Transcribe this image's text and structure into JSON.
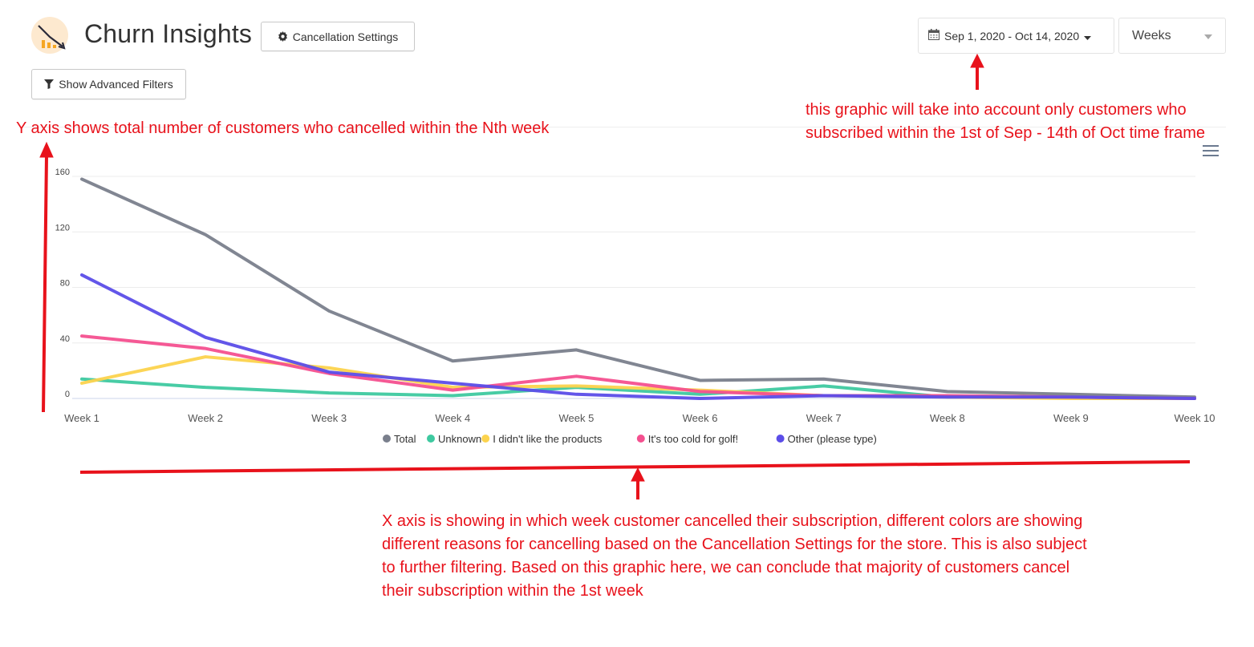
{
  "header": {
    "title": "Churn Insights",
    "settings_button": "Cancellation Settings",
    "filters_button": "Show Advanced Filters",
    "date_range": "Sep 1, 2020 - Oct 14, 2020",
    "period": "Weeks"
  },
  "annotations": {
    "y_axis_note": "Y axis shows total number of customers who cancelled within the Nth week",
    "date_note": "this graphic will take into account only customers who subscribed within the 1st of Sep - 14th of Oct time frame",
    "x_axis_note": "X axis is showing in which week customer cancelled their subscription, different colors are showing different reasons for cancelling based on the Cancellation Settings for the store. This is also subject to further filtering. Based on this graphic here, we can conclude that majority of customers cancel their subscription within the 1st week",
    "color": "#e8121b"
  },
  "icons": {
    "logo": "churn-chart-logo",
    "settings": "gear-icon",
    "filters": "funnel-icon",
    "calendar": "calendar-icon",
    "caret": "caret-down-icon",
    "menu": "hamburger-menu-icon"
  },
  "chart_data": {
    "type": "line",
    "categories": [
      "Week 1",
      "Week 2",
      "Week 3",
      "Week 4",
      "Week 5",
      "Week 6",
      "Week 7",
      "Week 8",
      "Week 9",
      "Week 10"
    ],
    "y_ticks": [
      "0",
      "40",
      "80",
      "120",
      "160"
    ],
    "ylim": [
      0,
      160
    ],
    "grid": true,
    "legend_position": "bottom-center",
    "series": [
      {
        "name": "Total",
        "color": "#7a7f8c",
        "values": [
          158,
          118,
          63,
          27,
          35,
          13,
          14,
          5,
          3,
          1
        ]
      },
      {
        "name": "Unknown",
        "color": "#3ec9a0",
        "values": [
          14,
          8,
          4,
          2,
          8,
          3,
          9,
          1,
          1,
          0
        ]
      },
      {
        "name": "I didn't like the products",
        "color": "#fcd34d",
        "values": [
          11,
          30,
          22,
          8,
          9,
          6,
          2,
          1,
          0,
          0
        ]
      },
      {
        "name": "It's too cold for golf!",
        "color": "#f4508f",
        "values": [
          45,
          36,
          18,
          6,
          16,
          5,
          2,
          2,
          1,
          0
        ]
      },
      {
        "name": "Other (please type)",
        "color": "#5b4de8",
        "values": [
          89,
          44,
          19,
          11,
          3,
          0,
          2,
          1,
          1,
          0
        ]
      }
    ]
  }
}
